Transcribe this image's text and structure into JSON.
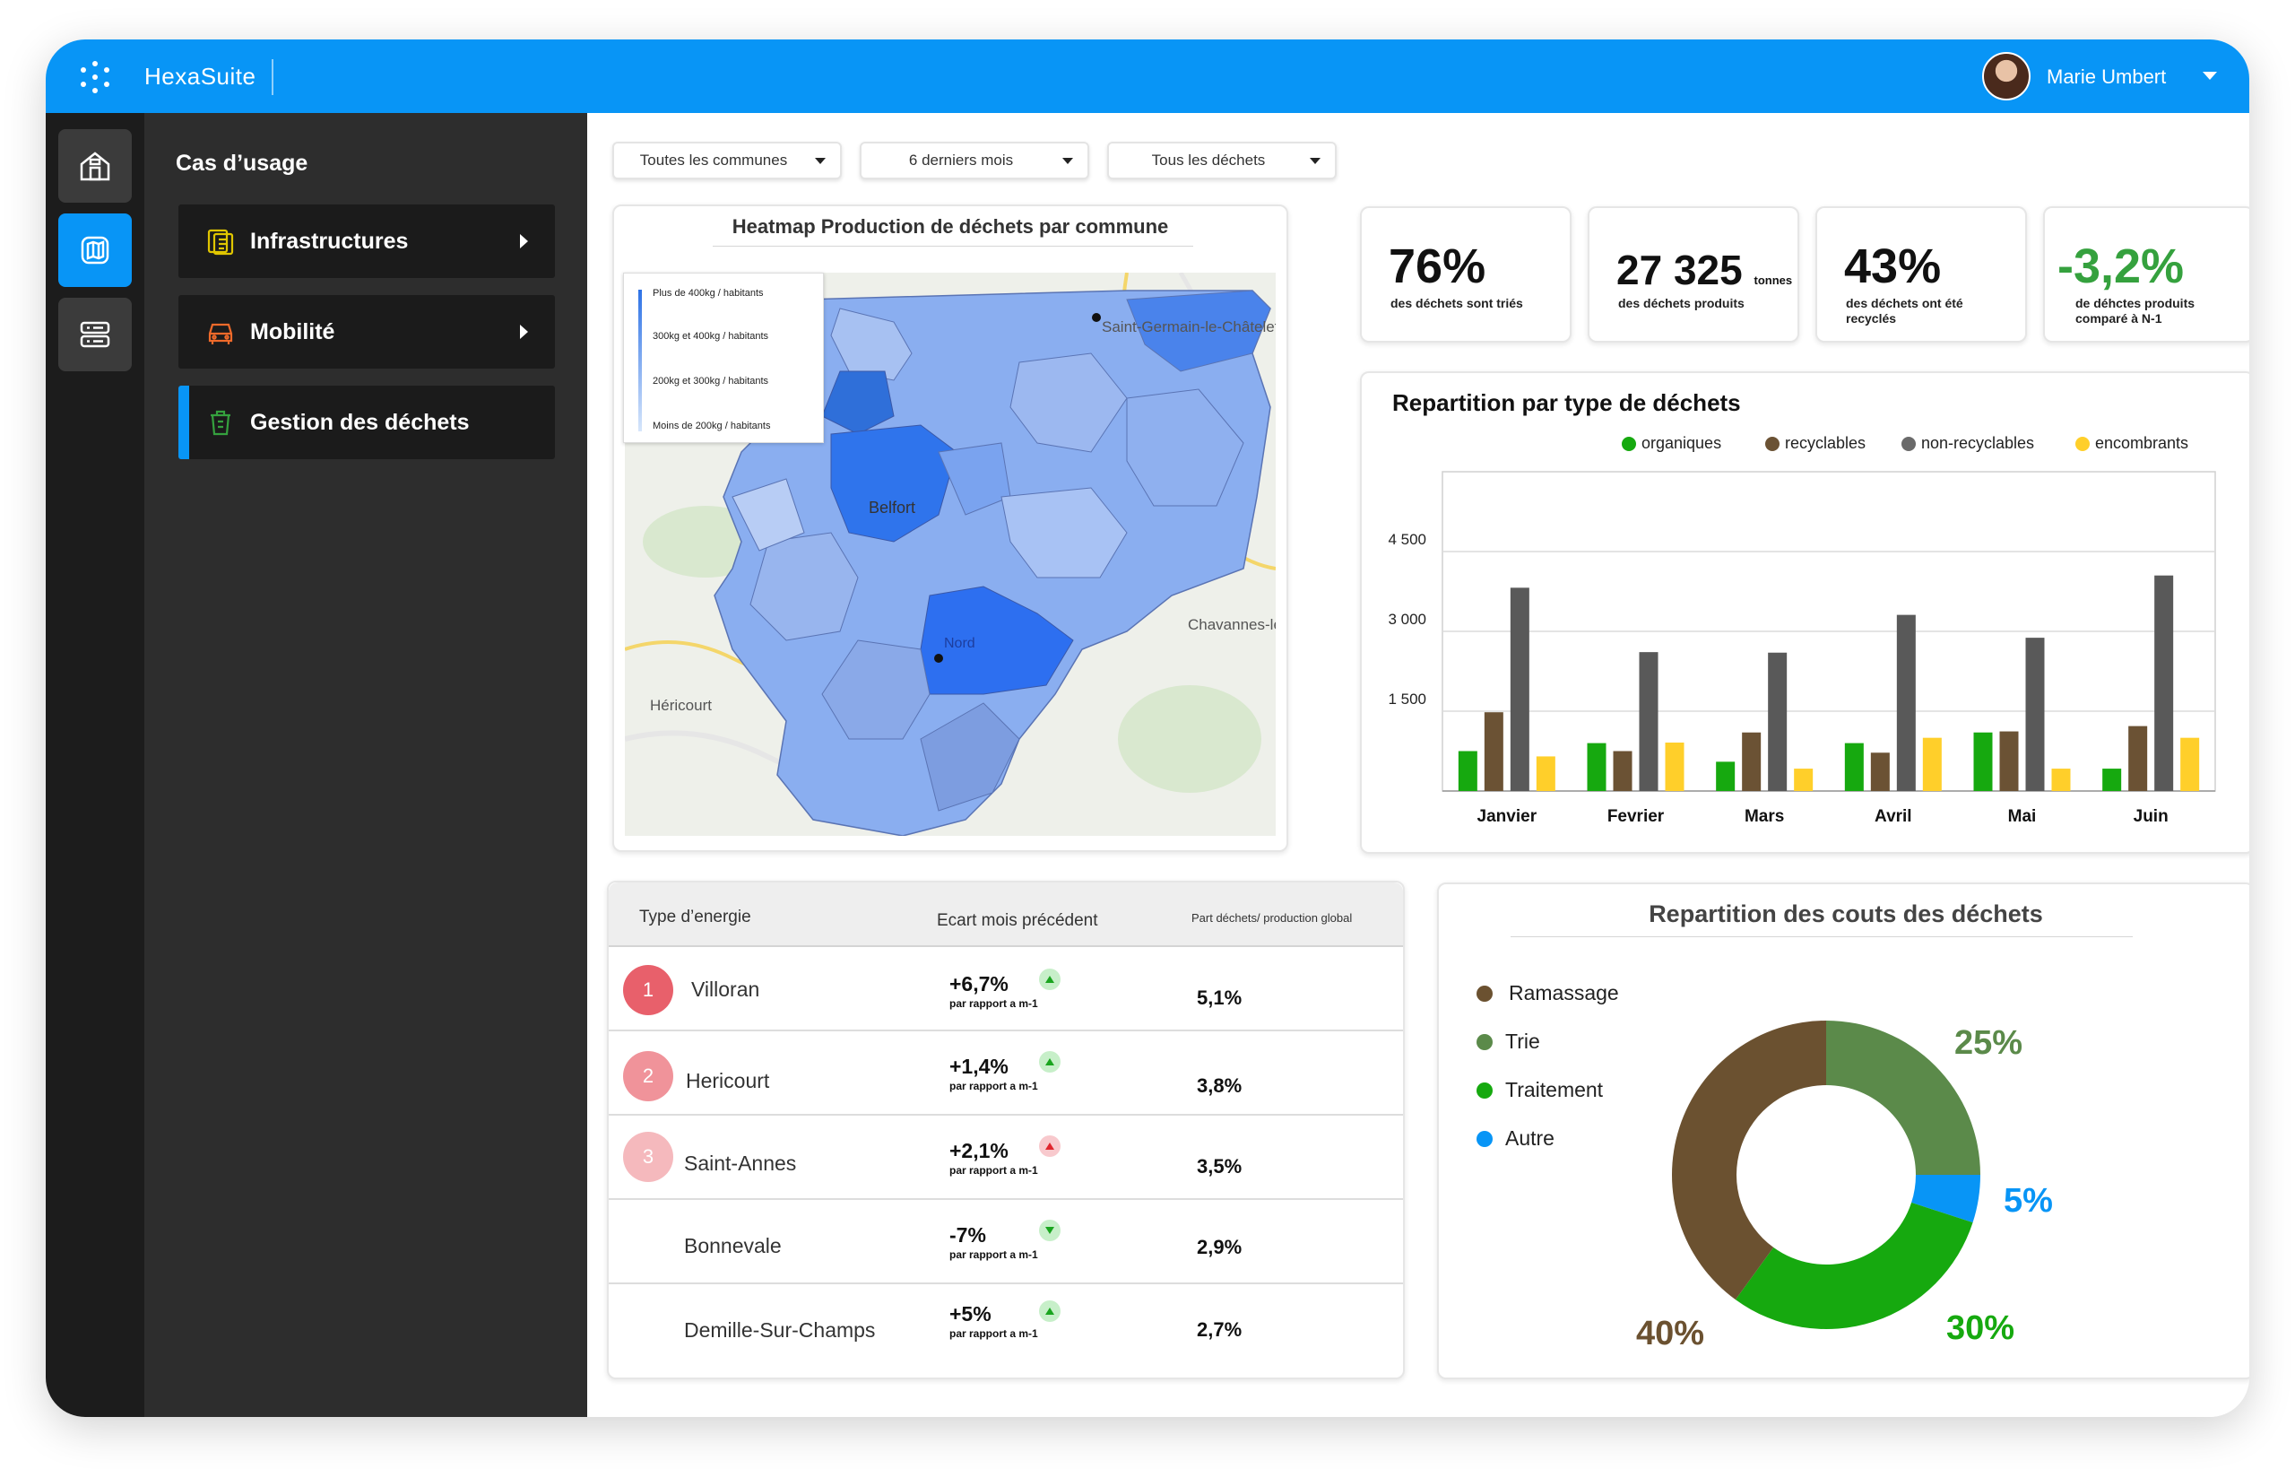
{
  "app": {
    "brand": "HexaSuite",
    "user": "Marie Umbert"
  },
  "menu": {
    "title": "Cas d’usage",
    "items": [
      {
        "label": "Infrastructures",
        "color": "#e0c600"
      },
      {
        "label": "Mobilité",
        "color": "#ef6a2a"
      },
      {
        "label": "Gestion des déchets",
        "color": "#35a13e"
      }
    ]
  },
  "filters": [
    "Toutes les communes",
    "6 derniers mois",
    "Tous les déchets"
  ],
  "heatmap": {
    "title": "Heatmap Production de déchets par commune",
    "legend": [
      "Plus de 400kg / habitants",
      "300kg et 400kg / habitants",
      "200kg et 300kg / habitants",
      "Moins de 200kg / habitants"
    ],
    "places": [
      "Saint-Germain-le-Châtelet",
      "Belfort",
      "Chavannes-les-Grands",
      "Héricourt",
      "Nord"
    ]
  },
  "kpis": [
    {
      "value": "76%",
      "unit": "",
      "caption": "des déchets sont triés"
    },
    {
      "value": "27 325",
      "unit": "tonnes",
      "caption": "des déchets produits"
    },
    {
      "value": "43%",
      "unit": "",
      "caption": "des déchets ont été recyclés"
    },
    {
      "value": "-3,2%",
      "unit": "",
      "caption": "de déhctes produits comparé à N-1"
    }
  ],
  "chart_data": {
    "type": "bar",
    "title": "Repartition par type de déchets",
    "categories": [
      "Janvier",
      "Fevrier",
      "Mars",
      "Avril",
      "Mai",
      "Juin"
    ],
    "series": [
      {
        "name": "organiques",
        "color": "#16a90f",
        "values": [
          750,
          900,
          550,
          900,
          1100,
          420
        ]
      },
      {
        "name": "recyclables",
        "color": "#6b5234",
        "values": [
          1480,
          750,
          1100,
          720,
          1120,
          1220
        ]
      },
      {
        "name": "non-recyclables",
        "color": "#595959",
        "values": [
          3820,
          2610,
          2600,
          3310,
          2880,
          4050
        ]
      },
      {
        "name": "encombrants",
        "color": "#ffcf2a",
        "values": [
          650,
          910,
          420,
          1000,
          420,
          1000
        ]
      }
    ],
    "yticks": [
      "1 500",
      "3 000",
      "4 500"
    ],
    "ytick_values": [
      1500,
      3000,
      4500
    ],
    "ylim": [
      0,
      6000
    ]
  },
  "table": {
    "headers": [
      "Type d’energie",
      "Ecart mois précédent",
      "Part déchets/ production global"
    ],
    "rows": [
      {
        "rank": "1",
        "rank_color": "#e8606b",
        "name": "Villoran",
        "ecart": "+6,7%",
        "sub": "par rapport a m-1",
        "trend": "up",
        "part": "5,1%"
      },
      {
        "rank": "2",
        "rank_color": "#f0939a",
        "name": "Hericourt",
        "ecart": "+1,4%",
        "sub": "par rapport a m-1",
        "trend": "up",
        "part": "3,8%"
      },
      {
        "rank": "3",
        "rank_color": "#f5b9bd",
        "name": "Saint-Annes",
        "ecart": "+2,1%",
        "sub": "par rapport a m-1",
        "trend": "up-red",
        "part": "3,5%"
      },
      {
        "rank": "",
        "rank_color": "",
        "name": "Bonnevale",
        "ecart": "-7%",
        "sub": "par rapport a m-1",
        "trend": "down",
        "part": "2,9%"
      },
      {
        "rank": "",
        "rank_color": "",
        "name": "Demille-Sur-Champs",
        "ecart": "+5%",
        "sub": "par rapport a m-1",
        "trend": "up",
        "part": "2,7%"
      }
    ]
  },
  "donut": {
    "title": "Repartition des couts des déchets",
    "slices": [
      {
        "name": "Ramassage",
        "value": 40,
        "label": "40%",
        "color": "#6b5130"
      },
      {
        "name": "Trie",
        "value": 25,
        "label": "25%",
        "color": "#5b8a4a"
      },
      {
        "name": "Traitement",
        "value": 30,
        "label": "30%",
        "color": "#16a90f"
      },
      {
        "name": "Autre",
        "value": 5,
        "label": "5%",
        "color": "#0895f6"
      }
    ]
  }
}
